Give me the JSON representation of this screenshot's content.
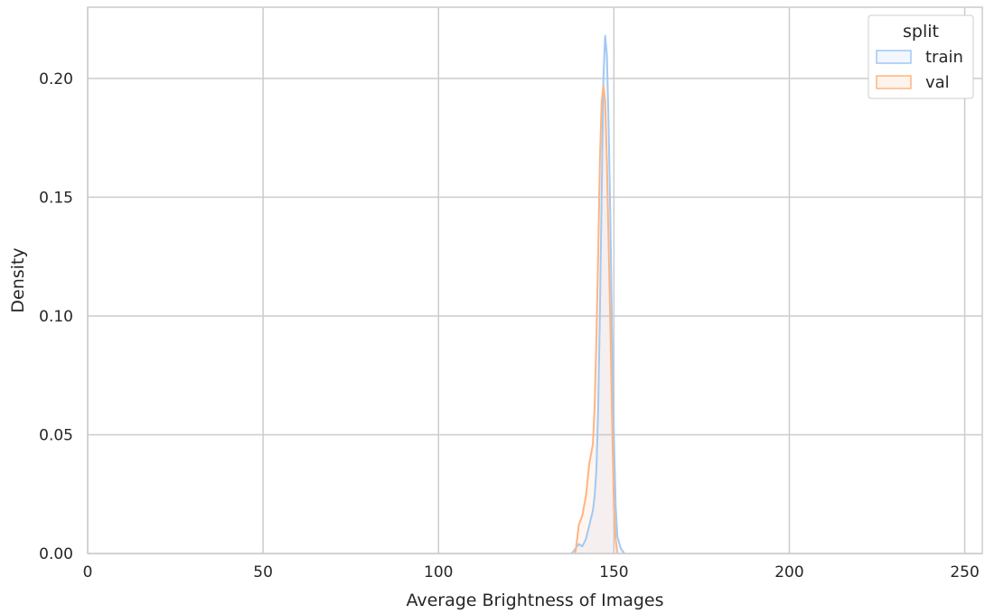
{
  "chart_data": {
    "type": "area",
    "title": "",
    "xlabel": "Average Brightness of Images",
    "ylabel": "Density",
    "xlim": [
      0,
      255
    ],
    "ylim": [
      0,
      0.23
    ],
    "xticks": [
      0,
      50,
      100,
      150,
      200,
      250
    ],
    "yticks": [
      0.0,
      0.05,
      0.1,
      0.15,
      0.2
    ],
    "xtick_labels": [
      "0",
      "50",
      "100",
      "150",
      "200",
      "250"
    ],
    "ytick_labels": [
      "0.00",
      "0.05",
      "0.10",
      "0.15",
      "0.20"
    ],
    "grid": true,
    "legend": {
      "title": "split",
      "position": "top-right"
    },
    "series": [
      {
        "name": "train",
        "color": "#a1c9f4",
        "x": [
          138,
          140,
          141,
          142,
          143,
          144,
          144.5,
          145,
          145.5,
          146,
          146.5,
          147,
          147.5,
          148,
          148.5,
          149,
          149.5,
          150,
          150.5,
          151,
          152,
          153
        ],
        "y": [
          0,
          0.004,
          0.003,
          0.006,
          0.012,
          0.018,
          0.024,
          0.035,
          0.06,
          0.1,
          0.15,
          0.2,
          0.218,
          0.21,
          0.18,
          0.14,
          0.09,
          0.05,
          0.02,
          0.007,
          0.002,
          0
        ]
      },
      {
        "name": "val",
        "color": "#ffb482",
        "x": [
          139,
          140,
          141,
          142,
          143,
          143.5,
          144,
          144.5,
          145,
          145.5,
          146,
          146.5,
          147,
          147.5,
          148,
          148.5,
          149,
          149.5,
          150,
          150.5,
          151
        ],
        "y": [
          0,
          0.012,
          0.016,
          0.024,
          0.038,
          0.042,
          0.046,
          0.062,
          0.09,
          0.125,
          0.165,
          0.19,
          0.197,
          0.19,
          0.165,
          0.13,
          0.095,
          0.055,
          0.02,
          0.006,
          0
        ]
      }
    ]
  }
}
